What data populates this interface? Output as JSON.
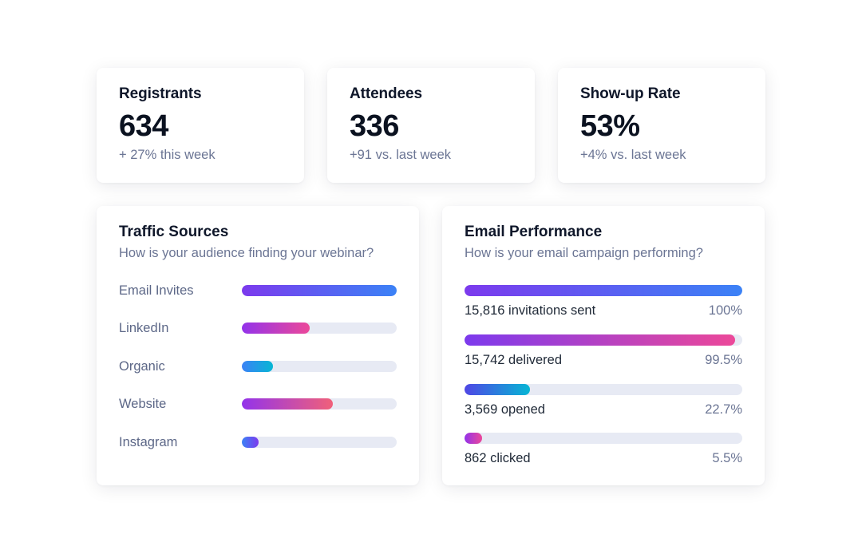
{
  "stats": [
    {
      "title": "Registrants",
      "value": "634",
      "delta": "+ 27% this week"
    },
    {
      "title": "Attendees",
      "value": "336",
      "delta": "+91 vs. last week"
    },
    {
      "title": "Show-up Rate",
      "value": "53%",
      "delta": "+4% vs. last week"
    }
  ],
  "traffic": {
    "title": "Traffic Sources",
    "subtitle": "How is your audience finding your webinar?",
    "items": [
      {
        "label": "Email Invites",
        "level": 1.0,
        "gradient": [
          "#7c3aed",
          "#3b82f6"
        ]
      },
      {
        "label": "LinkedIn",
        "level": 0.44,
        "gradient": [
          "#9333ea",
          "#ec4899"
        ]
      },
      {
        "label": "Organic",
        "level": 0.2,
        "gradient": [
          "#3b82f6",
          "#06b6d4"
        ]
      },
      {
        "label": "Website",
        "level": 0.59,
        "gradient": [
          "#9333ea",
          "#f0607a"
        ]
      },
      {
        "label": "Instagram",
        "level": 0.11,
        "gradient": [
          "#3b82f6",
          "#7c3aed"
        ]
      }
    ]
  },
  "email": {
    "title": "Email Performance",
    "subtitle": "How is your email campaign performing?",
    "items": [
      {
        "text": "15,816 invitations sent",
        "pct": "100%",
        "level": 1.0,
        "gradient": [
          "#7c3aed",
          "#3b82f6"
        ]
      },
      {
        "text": "15,742 delivered",
        "pct": "99.5%",
        "level": 0.975,
        "gradient": [
          "#7c3aed",
          "#ec4899"
        ]
      },
      {
        "text": "3,569 opened",
        "pct": "22.7%",
        "level": 0.235,
        "gradient": [
          "#4f46e5",
          "#06b6d4"
        ]
      },
      {
        "text": "862 clicked",
        "pct": "5.5%",
        "level": 0.063,
        "gradient": [
          "#9333ea",
          "#ec4899"
        ]
      }
    ]
  }
}
